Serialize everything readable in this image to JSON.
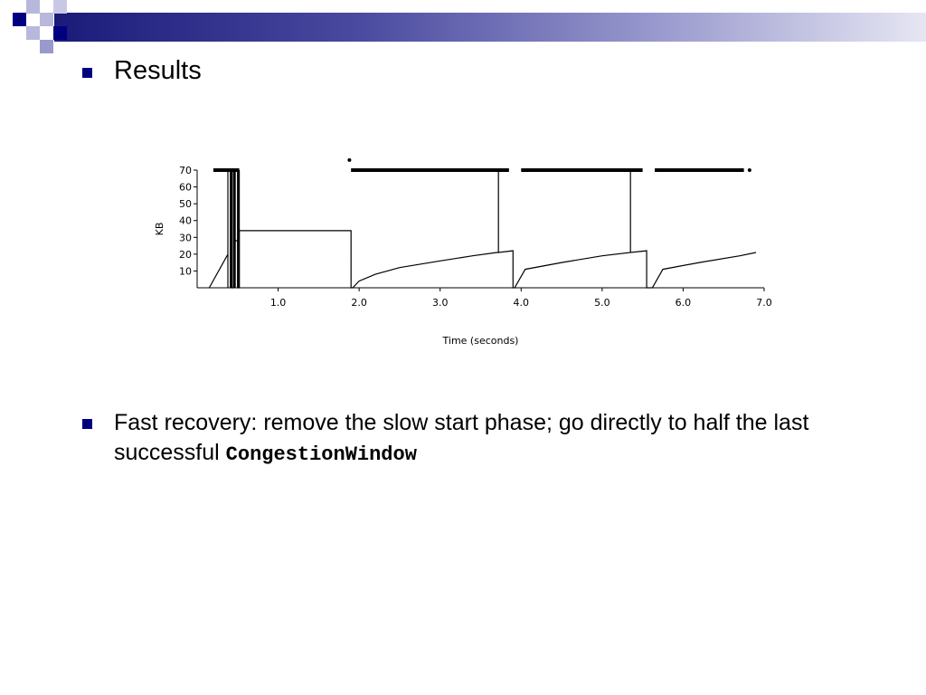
{
  "slide": {
    "title": "Results",
    "bullet_text": "Fast recovery: remove the slow start phase; go directly to half the last successful ",
    "bullet_code": "CongestionWindow"
  },
  "colors": {
    "bullet": "#000080",
    "header_dark": "#1a1a7a",
    "header_light": "#e6e6f3",
    "square_dark": "#000080",
    "square_light": "#9999cc"
  },
  "chart_data": {
    "type": "line",
    "title": "",
    "xlabel": "Time (seconds)",
    "ylabel": "KB",
    "xlim": [
      0,
      7
    ],
    "ylim": [
      0,
      70
    ],
    "x_ticks": [
      1,
      2,
      3,
      4,
      5,
      6,
      7
    ],
    "x_tick_labels": [
      "1.0",
      "2.0",
      "3.0",
      "4.0",
      "5.0",
      "6.0",
      "7.0"
    ],
    "y_ticks": [
      10,
      20,
      30,
      40,
      50,
      60,
      70
    ],
    "y_tick_labels": [
      "10",
      "20",
      "30",
      "40",
      "50",
      "60",
      "70"
    ],
    "grid": false,
    "series": [
      {
        "values_xy": [
          [
            0.15,
            0
          ],
          [
            0.38,
            20
          ],
          [
            0.38,
            0
          ],
          [
            0.38,
            70
          ],
          [
            0.42,
            70
          ],
          [
            0.42,
            0
          ],
          [
            0.45,
            0
          ],
          [
            0.45,
            70
          ],
          [
            0.45,
            28
          ],
          [
            0.5,
            28
          ],
          [
            0.5,
            70
          ],
          [
            0.5,
            0
          ],
          [
            0.52,
            0
          ],
          [
            0.52,
            34
          ],
          [
            1.9,
            34
          ],
          [
            1.9,
            0
          ],
          [
            1.92,
            0
          ],
          [
            2.0,
            4
          ],
          [
            2.2,
            8
          ],
          [
            2.5,
            12
          ],
          [
            3.0,
            16
          ],
          [
            3.4,
            19
          ],
          [
            3.7,
            21
          ],
          [
            3.72,
            21
          ],
          [
            3.72,
            70
          ],
          [
            3.72,
            21
          ],
          [
            3.9,
            22
          ],
          [
            3.9,
            0
          ],
          [
            3.92,
            0
          ],
          [
            4.05,
            11
          ],
          [
            4.5,
            15
          ],
          [
            5.0,
            19
          ],
          [
            5.35,
            21
          ],
          [
            5.35,
            70
          ],
          [
            5.35,
            21
          ],
          [
            5.55,
            22
          ],
          [
            5.55,
            0
          ],
          [
            5.62,
            0
          ],
          [
            5.75,
            11
          ],
          [
            6.2,
            15
          ],
          [
            6.7,
            19
          ],
          [
            6.9,
            21
          ]
        ]
      }
    ],
    "packet_send_segments": [
      [
        0.2,
        0.52
      ],
      [
        1.9,
        3.85
      ],
      [
        4.0,
        5.5
      ],
      [
        5.65,
        6.75
      ]
    ],
    "packet_marks": [
      [
        1.88,
        76
      ],
      [
        6.82,
        70
      ]
    ]
  }
}
